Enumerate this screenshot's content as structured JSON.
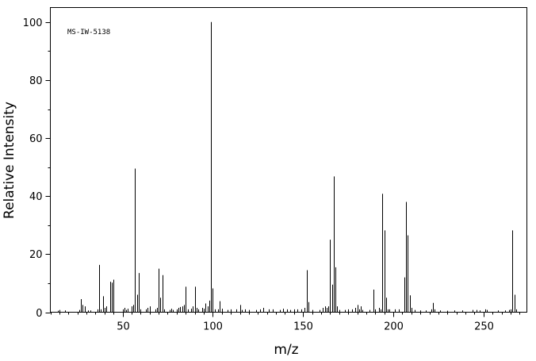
{
  "chart_data": {
    "type": "bar",
    "annotation": "MS-IW-5138",
    "xlabel": "m/z",
    "ylabel": "Relative Intensity",
    "xlim": [
      10,
      274
    ],
    "ylim": [
      0,
      105
    ],
    "x_ticks": [
      50,
      100,
      150,
      200,
      250
    ],
    "y_ticks": [
      0,
      20,
      40,
      60,
      80,
      100
    ],
    "x_minor_step": 5,
    "y_minor_step": 10,
    "grid": false,
    "color": "#000000",
    "peaks": [
      [
        14,
        0.5
      ],
      [
        15,
        0.8
      ],
      [
        18,
        0.6
      ],
      [
        26,
        0.8
      ],
      [
        27,
        4.5
      ],
      [
        28,
        2.5
      ],
      [
        29,
        2.0
      ],
      [
        31,
        0.6
      ],
      [
        32,
        0.6
      ],
      [
        36,
        1.0
      ],
      [
        37,
        16.3
      ],
      [
        38,
        1.0
      ],
      [
        39,
        5.5
      ],
      [
        40,
        1.5
      ],
      [
        41,
        2.0
      ],
      [
        43,
        10.5
      ],
      [
        44,
        10.2
      ],
      [
        45,
        11.2
      ],
      [
        50,
        1.0
      ],
      [
        51,
        1.5
      ],
      [
        52,
        0.8
      ],
      [
        53,
        1.2
      ],
      [
        55,
        2.0
      ],
      [
        56,
        2.5
      ],
      [
        57,
        49.5
      ],
      [
        58,
        6.0
      ],
      [
        59,
        13.5
      ],
      [
        60,
        1.0
      ],
      [
        63,
        1.0
      ],
      [
        64,
        1.5
      ],
      [
        65,
        2.0
      ],
      [
        68,
        1.0
      ],
      [
        69,
        1.5
      ],
      [
        70,
        15.0
      ],
      [
        71,
        5.0
      ],
      [
        72,
        12.8
      ],
      [
        73,
        1.0
      ],
      [
        76,
        0.8
      ],
      [
        77,
        1.2
      ],
      [
        78,
        0.8
      ],
      [
        80,
        1.0
      ],
      [
        81,
        1.5
      ],
      [
        82,
        1.8
      ],
      [
        83,
        2.0
      ],
      [
        84,
        2.5
      ],
      [
        85,
        8.8
      ],
      [
        86,
        1.0
      ],
      [
        88,
        1.2
      ],
      [
        89,
        2.0
      ],
      [
        90,
        8.8
      ],
      [
        91,
        1.5
      ],
      [
        92,
        1.0
      ],
      [
        94,
        1.5
      ],
      [
        95,
        1.2
      ],
      [
        96,
        3.0
      ],
      [
        97,
        2.0
      ],
      [
        98,
        4.0
      ],
      [
        99,
        100.0
      ],
      [
        100,
        8.2
      ],
      [
        101,
        1.0
      ],
      [
        103,
        1.0
      ],
      [
        104,
        3.8
      ],
      [
        105,
        1.2
      ],
      [
        108,
        0.8
      ],
      [
        110,
        1.0
      ],
      [
        113,
        1.0
      ],
      [
        115,
        2.5
      ],
      [
        116,
        0.8
      ],
      [
        118,
        1.0
      ],
      [
        120,
        0.8
      ],
      [
        124,
        0.8
      ],
      [
        126,
        1.0
      ],
      [
        128,
        1.5
      ],
      [
        131,
        1.0
      ],
      [
        133,
        1.0
      ],
      [
        137,
        0.8
      ],
      [
        139,
        1.2
      ],
      [
        141,
        1.0
      ],
      [
        143,
        0.8
      ],
      [
        145,
        1.0
      ],
      [
        147,
        1.0
      ],
      [
        149,
        1.0
      ],
      [
        151,
        1.5
      ],
      [
        152,
        14.5
      ],
      [
        153,
        3.5
      ],
      [
        155,
        0.8
      ],
      [
        159,
        0.8
      ],
      [
        161,
        1.5
      ],
      [
        162,
        2.0
      ],
      [
        163,
        1.5
      ],
      [
        164,
        2.0
      ],
      [
        165,
        25.0
      ],
      [
        166,
        9.5
      ],
      [
        167,
        46.8
      ],
      [
        168,
        15.5
      ],
      [
        169,
        2.0
      ],
      [
        170,
        0.8
      ],
      [
        173,
        0.8
      ],
      [
        175,
        1.0
      ],
      [
        177,
        1.0
      ],
      [
        179,
        1.5
      ],
      [
        180,
        2.5
      ],
      [
        181,
        1.0
      ],
      [
        182,
        2.0
      ],
      [
        183,
        0.8
      ],
      [
        187,
        0.8
      ],
      [
        189,
        7.8
      ],
      [
        190,
        1.0
      ],
      [
        192,
        1.5
      ],
      [
        193,
        1.0
      ],
      [
        194,
        40.8
      ],
      [
        195,
        28.2
      ],
      [
        196,
        5.0
      ],
      [
        197,
        1.0
      ],
      [
        198,
        1.0
      ],
      [
        201,
        1.0
      ],
      [
        203,
        1.0
      ],
      [
        206,
        12.0
      ],
      [
        207,
        38.0
      ],
      [
        208,
        26.5
      ],
      [
        209,
        5.8
      ],
      [
        210,
        1.5
      ],
      [
        212,
        0.8
      ],
      [
        215,
        0.6
      ],
      [
        218,
        0.6
      ],
      [
        221,
        1.0
      ],
      [
        222,
        3.2
      ],
      [
        223,
        1.0
      ],
      [
        226,
        0.6
      ],
      [
        230,
        0.5
      ],
      [
        234,
        0.6
      ],
      [
        238,
        0.6
      ],
      [
        244,
        0.8
      ],
      [
        246,
        0.8
      ],
      [
        248,
        0.6
      ],
      [
        251,
        1.0
      ],
      [
        252,
        0.8
      ],
      [
        258,
        0.6
      ],
      [
        262,
        0.6
      ],
      [
        264,
        0.8
      ],
      [
        265,
        1.0
      ],
      [
        266,
        28.2
      ],
      [
        267,
        6.0
      ],
      [
        268,
        1.0
      ]
    ]
  }
}
